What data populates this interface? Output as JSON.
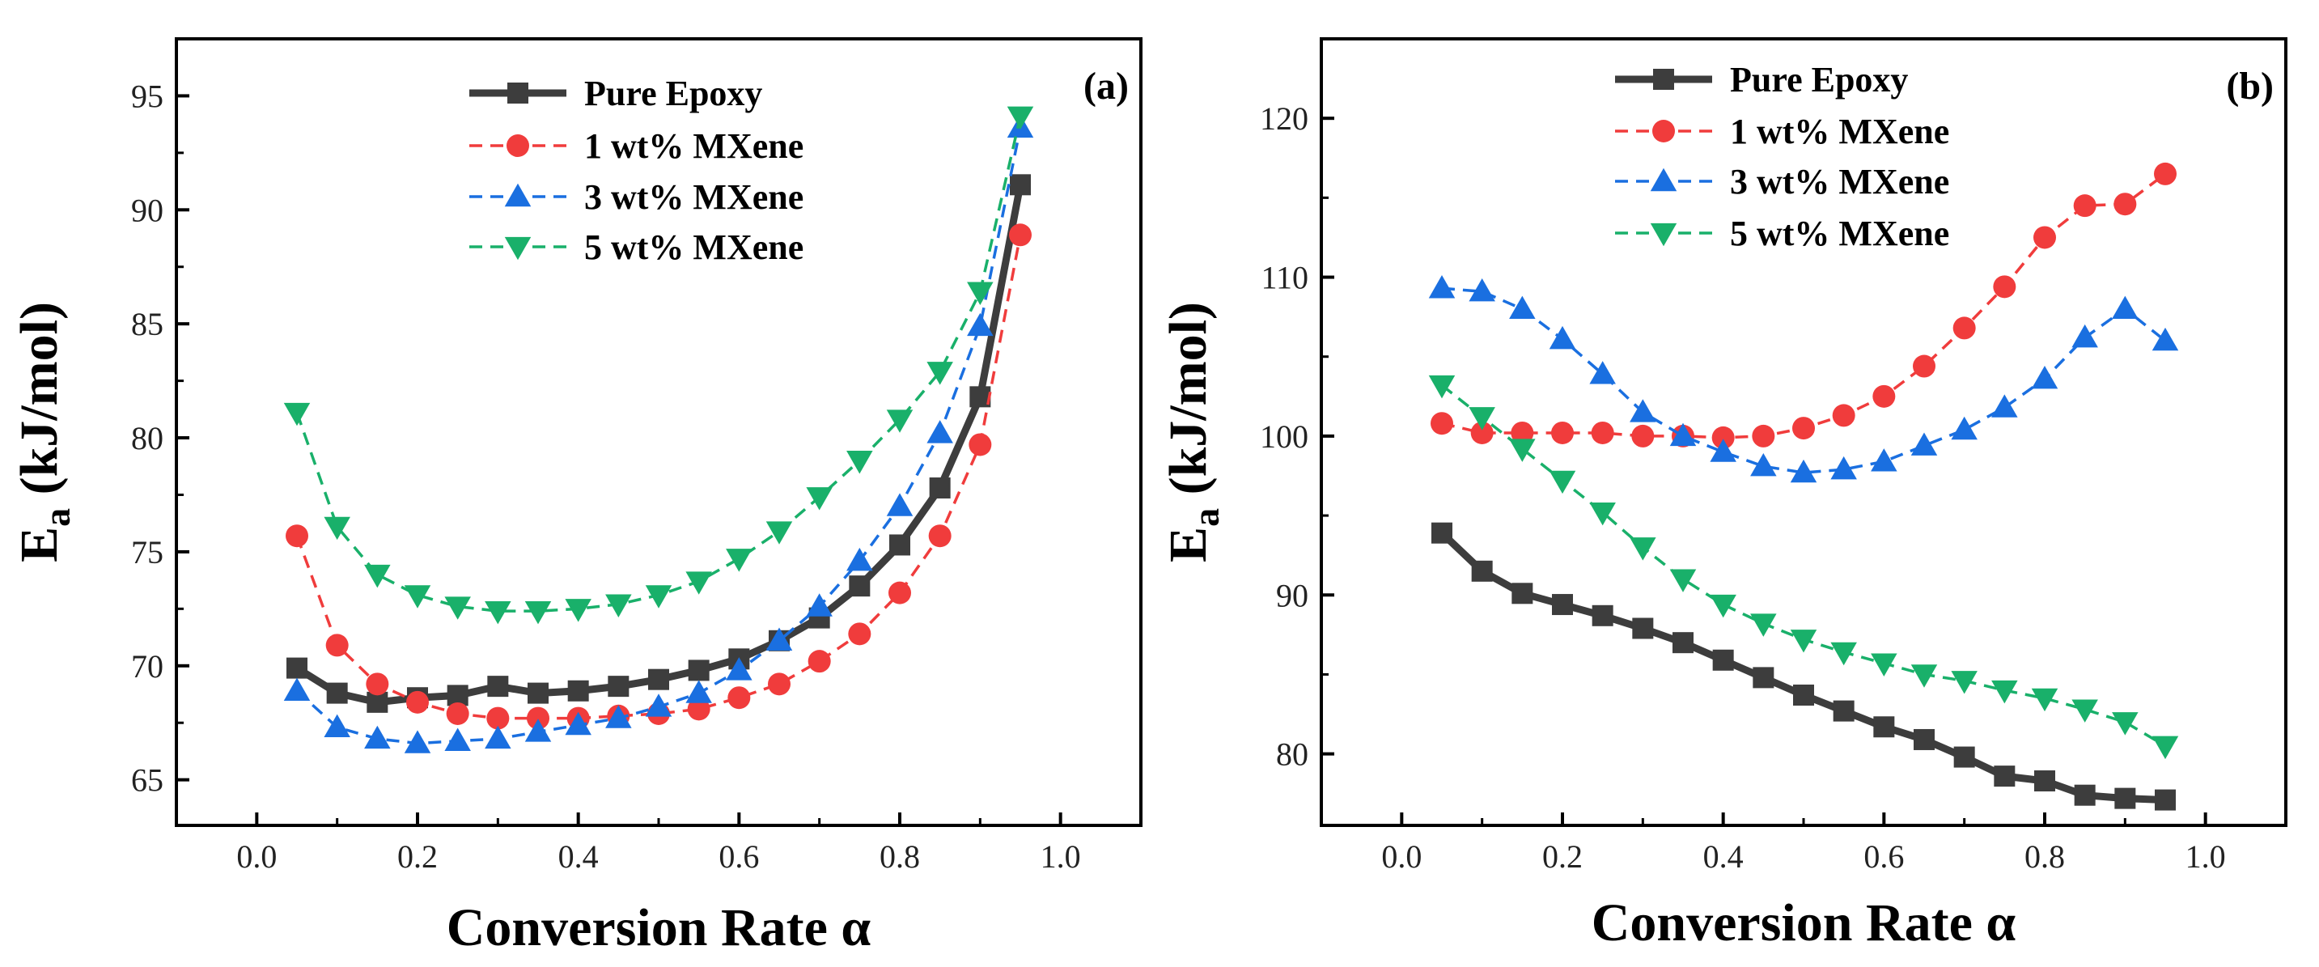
{
  "figure": {
    "description_panels": [
      "(a)",
      "(b)"
    ]
  },
  "colors": {
    "pure_epoxy": "#3d3d3d",
    "mxene_1": "#f03c3c",
    "mxene_3": "#1a6fe0",
    "mxene_5": "#19b06a",
    "axis": "#000000"
  },
  "chart_data": [
    {
      "type": "line",
      "panel_label": "(a)",
      "xlabel": "Conversion Rate α",
      "ylabel_main": "E",
      "ylabel_sub": "a",
      "ylabel_unit": " (kJ/mol)",
      "xlim": [
        -0.1,
        1.1
      ],
      "ylim": [
        63,
        97.5
      ],
      "xticks": [
        0.0,
        0.2,
        0.4,
        0.6,
        0.8,
        1.0
      ],
      "xtick_labels": [
        "0.0",
        "0.2",
        "0.4",
        "0.6",
        "0.8",
        "1.0"
      ],
      "yticks": [
        65,
        70,
        75,
        80,
        85,
        90,
        95
      ],
      "ytick_labels": [
        "65",
        "70",
        "75",
        "80",
        "85",
        "90",
        "95"
      ],
      "legend_position": "top-center",
      "x": [
        0.05,
        0.1,
        0.15,
        0.2,
        0.25,
        0.3,
        0.35,
        0.4,
        0.45,
        0.5,
        0.55,
        0.6,
        0.65,
        0.7,
        0.75,
        0.8,
        0.85,
        0.9,
        0.95
      ],
      "series": [
        {
          "name": "Pure Epoxy",
          "style": "solid",
          "marker": "square",
          "color_key": "pure_epoxy",
          "values": [
            69.9,
            68.8,
            68.4,
            68.6,
            68.7,
            69.1,
            68.8,
            68.9,
            69.1,
            69.4,
            69.8,
            70.3,
            71.1,
            72.1,
            73.5,
            75.3,
            77.8,
            81.8,
            91.1
          ]
        },
        {
          "name": "1 wt% MXene",
          "style": "dashed",
          "marker": "circle",
          "color_key": "mxene_1",
          "values": [
            75.7,
            70.9,
            69.2,
            68.4,
            67.9,
            67.7,
            67.7,
            67.7,
            67.8,
            67.9,
            68.1,
            68.6,
            69.2,
            70.2,
            71.4,
            73.2,
            75.7,
            79.7,
            88.9
          ]
        },
        {
          "name": "3 wt% MXene",
          "style": "dashed",
          "marker": "triangle-up",
          "color_key": "mxene_3",
          "values": [
            68.9,
            67.3,
            66.8,
            66.6,
            66.7,
            66.8,
            67.1,
            67.4,
            67.7,
            68.2,
            68.8,
            69.8,
            71.1,
            72.6,
            74.6,
            77.0,
            80.2,
            84.9,
            93.6
          ]
        },
        {
          "name": "5 wt% MXene",
          "style": "dashed",
          "marker": "triangle-down",
          "color_key": "mxene_5",
          "values": [
            81.1,
            76.1,
            74.0,
            73.1,
            72.6,
            72.4,
            72.4,
            72.5,
            72.7,
            73.1,
            73.7,
            74.7,
            75.9,
            77.4,
            79.0,
            80.8,
            82.9,
            86.4,
            94.1
          ]
        }
      ]
    },
    {
      "type": "line",
      "panel_label": "(b)",
      "xlabel": "Conversion Rate α",
      "ylabel_main": "E",
      "ylabel_sub": "a",
      "ylabel_unit": " (kJ/mol)",
      "xlim": [
        -0.1,
        1.1
      ],
      "ylim": [
        75.5,
        125
      ],
      "xticks": [
        0.0,
        0.2,
        0.4,
        0.6,
        0.8,
        1.0
      ],
      "xtick_labels": [
        "0.0",
        "0.2",
        "0.4",
        "0.6",
        "0.8",
        "1.0"
      ],
      "yticks": [
        80,
        90,
        100,
        110,
        120
      ],
      "ytick_labels": [
        "80",
        "90",
        "100",
        "110",
        "120"
      ],
      "legend_position": "top-center",
      "x": [
        0.05,
        0.1,
        0.15,
        0.2,
        0.25,
        0.3,
        0.35,
        0.4,
        0.45,
        0.5,
        0.55,
        0.6,
        0.65,
        0.7,
        0.75,
        0.8,
        0.85,
        0.9,
        0.95
      ],
      "series": [
        {
          "name": "Pure Epoxy",
          "style": "solid",
          "marker": "square",
          "color_key": "pure_epoxy",
          "values": [
            93.9,
            91.5,
            90.1,
            89.4,
            88.7,
            87.9,
            87.0,
            85.9,
            84.8,
            83.7,
            82.7,
            81.7,
            80.9,
            79.8,
            78.6,
            78.3,
            77.4,
            77.2,
            77.1
          ]
        },
        {
          "name": "1 wt% MXene",
          "style": "dashed",
          "marker": "circle",
          "color_key": "mxene_1",
          "values": [
            100.8,
            100.2,
            100.2,
            100.2,
            100.2,
            100.0,
            100.0,
            99.9,
            100.0,
            100.5,
            101.3,
            102.5,
            104.4,
            106.8,
            109.4,
            112.5,
            114.5,
            114.6,
            116.5
          ]
        },
        {
          "name": "3 wt% MXene",
          "style": "dashed",
          "marker": "triangle-up",
          "color_key": "mxene_3",
          "values": [
            109.3,
            109.1,
            108.0,
            106.1,
            103.9,
            101.5,
            100.0,
            99.0,
            98.1,
            97.7,
            97.9,
            98.4,
            99.4,
            100.4,
            101.8,
            103.6,
            106.2,
            108.0,
            106.0
          ]
        },
        {
          "name": "5 wt% MXene",
          "style": "dashed",
          "marker": "triangle-down",
          "color_key": "mxene_5",
          "values": [
            103.2,
            101.2,
            99.2,
            97.2,
            95.2,
            93.0,
            91.0,
            89.4,
            88.2,
            87.2,
            86.4,
            85.7,
            85.0,
            84.6,
            84.0,
            83.5,
            82.8,
            82.0,
            80.5
          ]
        }
      ]
    }
  ]
}
